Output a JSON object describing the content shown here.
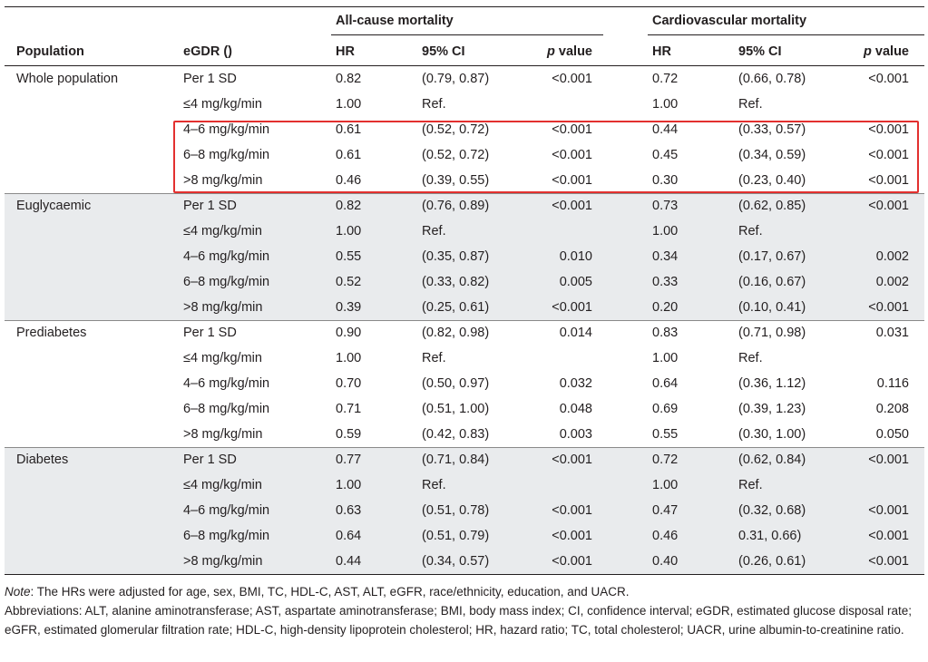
{
  "header": {
    "group_all_cause": "All-cause mortality",
    "group_cardio": "Cardiovascular mortality",
    "col_population": "Population",
    "col_egdr": "eGDR ()",
    "col_hr": "HR",
    "col_ci": "95% CI",
    "col_p_italic": "p",
    "col_p_rest": " value"
  },
  "rows": [
    {
      "population": "Whole population",
      "egdr": "Per 1 SD",
      "hr1": "0.82",
      "ci1": "(0.79, 0.87)",
      "p1": "<0.001",
      "hr2": "0.72",
      "ci2": "(0.66, 0.78)",
      "p2": "<0.001"
    },
    {
      "population": "",
      "egdr": "≤4 mg/kg/min",
      "hr1": "1.00",
      "ci1": "Ref.",
      "p1": "",
      "hr2": "1.00",
      "ci2": "Ref.",
      "p2": ""
    },
    {
      "population": "",
      "egdr": "4–6 mg/kg/min",
      "hr1": "0.61",
      "ci1": "(0.52, 0.72)",
      "p1": "<0.001",
      "hr2": "0.44",
      "ci2": "(0.33, 0.57)",
      "p2": "<0.001"
    },
    {
      "population": "",
      "egdr": "6–8 mg/kg/min",
      "hr1": "0.61",
      "ci1": "(0.52, 0.72)",
      "p1": "<0.001",
      "hr2": "0.45",
      "ci2": "(0.34, 0.59)",
      "p2": "<0.001"
    },
    {
      "population": "",
      "egdr": ">8 mg/kg/min",
      "hr1": "0.46",
      "ci1": "(0.39, 0.55)",
      "p1": "<0.001",
      "hr2": "0.30",
      "ci2": "(0.23, 0.40)",
      "p2": "<0.001"
    },
    {
      "population": "Euglycaemic",
      "egdr": "Per 1 SD",
      "hr1": "0.82",
      "ci1": "(0.76, 0.89)",
      "p1": "<0.001",
      "hr2": "0.73",
      "ci2": "(0.62, 0.85)",
      "p2": "<0.001"
    },
    {
      "population": "",
      "egdr": "≤4 mg/kg/min",
      "hr1": "1.00",
      "ci1": "Ref.",
      "p1": "",
      "hr2": "1.00",
      "ci2": "Ref.",
      "p2": ""
    },
    {
      "population": "",
      "egdr": "4–6 mg/kg/min",
      "hr1": "0.55",
      "ci1": "(0.35, 0.87)",
      "p1": "0.010",
      "hr2": "0.34",
      "ci2": "(0.17, 0.67)",
      "p2": "0.002"
    },
    {
      "population": "",
      "egdr": "6–8 mg/kg/min",
      "hr1": "0.52",
      "ci1": "(0.33, 0.82)",
      "p1": "0.005",
      "hr2": "0.33",
      "ci2": "(0.16, 0.67)",
      "p2": "0.002"
    },
    {
      "population": "",
      "egdr": ">8 mg/kg/min",
      "hr1": "0.39",
      "ci1": "(0.25, 0.61)",
      "p1": "<0.001",
      "hr2": "0.20",
      "ci2": "(0.10, 0.41)",
      "p2": "<0.001"
    },
    {
      "population": "Prediabetes",
      "egdr": "Per 1 SD",
      "hr1": "0.90",
      "ci1": "(0.82, 0.98)",
      "p1": "0.014",
      "hr2": "0.83",
      "ci2": "(0.71, 0.98)",
      "p2": "0.031"
    },
    {
      "population": "",
      "egdr": "≤4 mg/kg/min",
      "hr1": "1.00",
      "ci1": "Ref.",
      "p1": "",
      "hr2": "1.00",
      "ci2": "Ref.",
      "p2": ""
    },
    {
      "population": "",
      "egdr": "4–6 mg/kg/min",
      "hr1": "0.70",
      "ci1": "(0.50, 0.97)",
      "p1": "0.032",
      "hr2": "0.64",
      "ci2": "(0.36, 1.12)",
      "p2": "0.116"
    },
    {
      "population": "",
      "egdr": "6–8 mg/kg/min",
      "hr1": "0.71",
      "ci1": "(0.51, 1.00)",
      "p1": "0.048",
      "hr2": "0.69",
      "ci2": "(0.39, 1.23)",
      "p2": "0.208"
    },
    {
      "population": "",
      "egdr": ">8 mg/kg/min",
      "hr1": "0.59",
      "ci1": "(0.42, 0.83)",
      "p1": "0.003",
      "hr2": "0.55",
      "ci2": "(0.30, 1.00)",
      "p2": "0.050"
    },
    {
      "population": "Diabetes",
      "egdr": "Per 1 SD",
      "hr1": "0.77",
      "ci1": "(0.71, 0.84)",
      "p1": "<0.001",
      "hr2": "0.72",
      "ci2": "(0.62, 0.84)",
      "p2": "<0.001"
    },
    {
      "population": "",
      "egdr": "≤4 mg/kg/min",
      "hr1": "1.00",
      "ci1": "Ref.",
      "p1": "",
      "hr2": "1.00",
      "ci2": "Ref.",
      "p2": ""
    },
    {
      "population": "",
      "egdr": "4–6 mg/kg/min",
      "hr1": "0.63",
      "ci1": "(0.51, 0.78)",
      "p1": "<0.001",
      "hr2": "0.47",
      "ci2": "(0.32, 0.68)",
      "p2": "<0.001"
    },
    {
      "population": "",
      "egdr": "6–8 mg/kg/min",
      "hr1": "0.64",
      "ci1": "(0.51, 0.79)",
      "p1": "<0.001",
      "hr2": "0.46",
      "ci2": "0.31, 0.66)",
      "p2": "<0.001"
    },
    {
      "population": "",
      "egdr": ">8 mg/kg/min",
      "hr1": "0.44",
      "ci1": "(0.34, 0.57)",
      "p1": "<0.001",
      "hr2": "0.40",
      "ci2": "(0.26, 0.61)",
      "p2": "<0.001"
    }
  ],
  "shaded_groups": [
    "Euglycaemic",
    "Diabetes"
  ],
  "highlight": {
    "color": "#e3302f",
    "rows": [
      "4–6 mg/kg/min",
      "6–8 mg/kg/min",
      ">8 mg/kg/min"
    ],
    "group": "Whole population"
  },
  "colors": {
    "shade": "#e9ebed",
    "text": "#231f20"
  },
  "notes": {
    "note_label": "Note",
    "note_text": ": The HRs were adjusted for age, sex, BMI, TC, HDL-C, AST, ALT, eGFR, race/ethnicity, education, and UACR.",
    "abbreviations": "Abbreviations: ALT, alanine aminotransferase; AST, aspartate aminotransferase; BMI, body mass index; CI, confidence interval; eGDR, estimated glucose disposal rate; eGFR, estimated glomerular filtration rate; HDL-C, high-density lipoprotein cholesterol; HR, hazard ratio; TC, total cholesterol; UACR, urine albumin-to-creatinine ratio."
  }
}
